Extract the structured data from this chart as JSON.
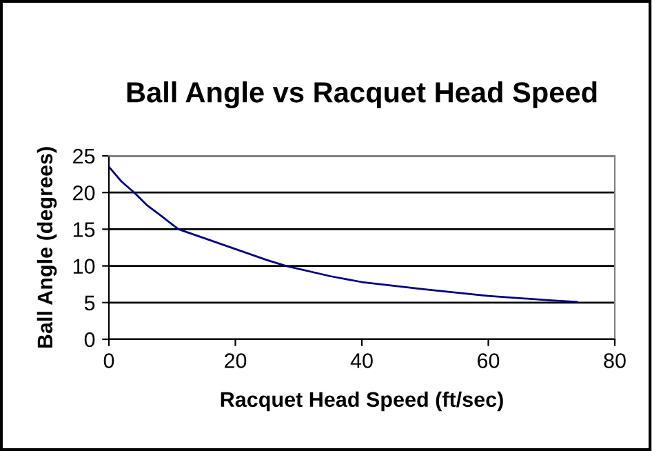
{
  "chart_data": {
    "type": "line",
    "title": "Ball Angle vs Racquet Head Speed",
    "xlabel": "Racquet Head Speed (ft/sec)",
    "ylabel": "Ball Angle (degrees)",
    "x": [
      0,
      2,
      4,
      6,
      8,
      11,
      15,
      20,
      25,
      28,
      35,
      40,
      50,
      60,
      70,
      74
    ],
    "series": [
      {
        "color": "#000080",
        "values": [
          23.5,
          21.5,
          20,
          18.3,
          17,
          15,
          13.8,
          12.3,
          10.8,
          10,
          8.6,
          7.8,
          6.8,
          5.9,
          5.3,
          5.1
        ]
      }
    ],
    "xlim": [
      0,
      80
    ],
    "xticks": [
      0,
      20,
      40,
      60,
      80
    ],
    "ylim": [
      0,
      25
    ],
    "yticks": [
      0,
      5,
      10,
      15,
      20,
      25
    ],
    "grid": "y",
    "marker": "none",
    "line_style": "solid"
  }
}
